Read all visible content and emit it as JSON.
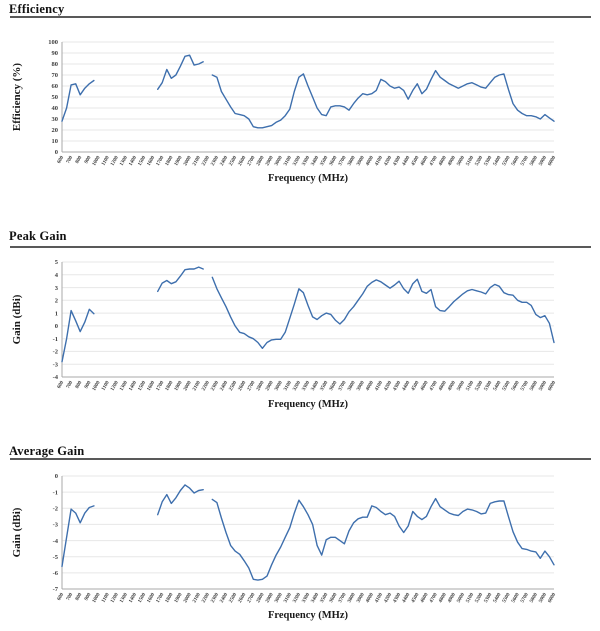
{
  "page": {
    "background": "#ffffff",
    "rule_color": "#595959",
    "line_color": "#3E6FAD",
    "grid_color": "#E7E7E7",
    "axis_color": "#A9A9A9",
    "tick_text_color": "#404040"
  },
  "chart_data": {
    "type": "line",
    "xlabel": "Frequency (MHz)",
    "x_range": [
      600,
      6000
    ],
    "grid": true,
    "legend": false,
    "x_tick_labels": [
      600,
      700,
      800,
      900,
      1000,
      1100,
      1200,
      1300,
      1400,
      1500,
      1600,
      1700,
      1800,
      1900,
      2000,
      2100,
      2200,
      2300,
      2400,
      2500,
      2600,
      2700,
      2800,
      2900,
      3000,
      3100,
      3200,
      3300,
      3400,
      3500,
      3600,
      3700,
      3800,
      3900,
      4000,
      4100,
      4200,
      4300,
      4400,
      4500,
      4600,
      4700,
      4800,
      4900,
      5000,
      5100,
      5200,
      5300,
      5400,
      5500,
      5600,
      5700,
      5800,
      5900,
      6000
    ],
    "x": [
      600,
      650,
      700,
      750,
      800,
      850,
      900,
      950,
      1000,
      1050,
      1100,
      1150,
      1200,
      1250,
      1300,
      1350,
      1400,
      1450,
      1500,
      1550,
      1600,
      1650,
      1700,
      1750,
      1800,
      1850,
      1900,
      1950,
      2000,
      2050,
      2100,
      2150,
      2200,
      2250,
      2300,
      2350,
      2400,
      2450,
      2500,
      2550,
      2600,
      2650,
      2700,
      2750,
      2800,
      2850,
      2900,
      2950,
      3000,
      3050,
      3100,
      3150,
      3200,
      3250,
      3300,
      3350,
      3400,
      3450,
      3500,
      3550,
      3600,
      3650,
      3700,
      3750,
      3800,
      3850,
      3900,
      3950,
      4000,
      4050,
      4100,
      4150,
      4200,
      4250,
      4300,
      4350,
      4400,
      4450,
      4500,
      4550,
      4600,
      4650,
      4700,
      4750,
      4800,
      4850,
      4900,
      4950,
      5000,
      5050,
      5100,
      5150,
      5200,
      5250,
      5300,
      5350,
      5400,
      5450,
      5500,
      5550,
      5600,
      5650,
      5700,
      5750,
      5800,
      5850,
      5900,
      5950,
      6000
    ],
    "series": [
      {
        "name": "Efficiency",
        "ylabel": "Efficiency (%)",
        "ylim": [
          0,
          100
        ],
        "y_ticks": [
          100,
          90,
          80,
          70,
          60,
          50,
          40,
          30,
          20,
          10,
          0
        ],
        "values": [
          28,
          40,
          61,
          62,
          52,
          58,
          62,
          65,
          null,
          null,
          null,
          null,
          null,
          null,
          null,
          null,
          null,
          null,
          null,
          null,
          null,
          57,
          63,
          75,
          67,
          70,
          78,
          87,
          88,
          79,
          80,
          82,
          null,
          70,
          68,
          55,
          48,
          41,
          35,
          34,
          33,
          30,
          23,
          22,
          22,
          23,
          24,
          27,
          29,
          33,
          39,
          55,
          68,
          71,
          60,
          50,
          40,
          34,
          33,
          41,
          42,
          42,
          41,
          38,
          44,
          49,
          53,
          52,
          53,
          56,
          66,
          64,
          60,
          58,
          59,
          56,
          48,
          56,
          62,
          53,
          57,
          66,
          74,
          68,
          65,
          62,
          60,
          58,
          60,
          62,
          63,
          61,
          59,
          58,
          63,
          68,
          70,
          71,
          57,
          44,
          38,
          35,
          33,
          33,
          32,
          30,
          34,
          31,
          28
        ]
      },
      {
        "name": "Peak Gain",
        "ylabel": "Gain (dBi)",
        "ylim": [
          -4,
          5
        ],
        "y_ticks": [
          5,
          4,
          3,
          2,
          1,
          0,
          -1,
          -2,
          -3,
          -4
        ],
        "values": [
          -2.8,
          -1.0,
          1.2,
          0.4,
          -0.45,
          0.3,
          1.3,
          0.95,
          null,
          null,
          null,
          null,
          null,
          null,
          null,
          null,
          null,
          null,
          null,
          null,
          null,
          2.7,
          3.35,
          3.55,
          3.3,
          3.45,
          3.9,
          4.4,
          4.45,
          4.45,
          4.6,
          4.45,
          null,
          3.8,
          2.9,
          2.2,
          1.5,
          0.7,
          0.0,
          -0.5,
          -0.6,
          -0.85,
          -1.0,
          -1.3,
          -1.75,
          -1.3,
          -1.1,
          -1.05,
          -1.05,
          -0.5,
          0.6,
          1.7,
          2.9,
          2.6,
          1.6,
          0.7,
          0.5,
          0.8,
          1.0,
          0.9,
          0.45,
          0.15,
          0.5,
          1.1,
          1.5,
          2.0,
          2.5,
          3.1,
          3.4,
          3.6,
          3.45,
          3.2,
          2.95,
          3.2,
          3.5,
          2.9,
          2.55,
          3.3,
          3.65,
          2.7,
          2.55,
          2.85,
          1.5,
          1.2,
          1.15,
          1.5,
          1.9,
          2.2,
          2.5,
          2.75,
          2.85,
          2.75,
          2.65,
          2.5,
          3.0,
          3.25,
          3.1,
          2.6,
          2.45,
          2.4,
          2.0,
          1.85,
          1.85,
          1.6,
          0.9,
          0.65,
          0.8,
          0.2,
          -1.3
        ]
      },
      {
        "name": "Average Gain",
        "ylabel": "Gain (dBi)",
        "ylim": [
          -7,
          0
        ],
        "y_ticks": [
          0,
          -1,
          -2,
          -3,
          -4,
          -5,
          -6,
          -7
        ],
        "values": [
          -5.6,
          -3.8,
          -2.05,
          -2.3,
          -2.9,
          -2.3,
          -1.95,
          -1.85,
          null,
          null,
          null,
          null,
          null,
          null,
          null,
          null,
          null,
          null,
          null,
          null,
          null,
          -2.4,
          -1.6,
          -1.15,
          -1.7,
          -1.35,
          -0.9,
          -0.55,
          -0.75,
          -1.05,
          -0.9,
          -0.85,
          null,
          -1.45,
          -1.65,
          -2.6,
          -3.5,
          -4.3,
          -4.65,
          -4.85,
          -5.25,
          -5.7,
          -6.4,
          -6.45,
          -6.4,
          -6.2,
          -5.5,
          -4.9,
          -4.4,
          -3.8,
          -3.2,
          -2.3,
          -1.5,
          -1.9,
          -2.4,
          -3.0,
          -4.3,
          -4.9,
          -3.95,
          -3.8,
          -3.8,
          -4.0,
          -4.2,
          -3.4,
          -2.9,
          -2.65,
          -2.55,
          -2.55,
          -1.85,
          -1.95,
          -2.2,
          -2.4,
          -2.3,
          -2.5,
          -3.1,
          -3.5,
          -3.1,
          -2.2,
          -2.5,
          -2.7,
          -2.5,
          -1.9,
          -1.4,
          -1.9,
          -2.1,
          -2.3,
          -2.4,
          -2.45,
          -2.2,
          -2.05,
          -2.1,
          -2.2,
          -2.35,
          -2.3,
          -1.7,
          -1.6,
          -1.55,
          -1.55,
          -2.5,
          -3.45,
          -4.1,
          -4.5,
          -4.55,
          -4.65,
          -4.7,
          -5.1,
          -4.65,
          -5.0,
          -5.5
        ]
      }
    ]
  }
}
